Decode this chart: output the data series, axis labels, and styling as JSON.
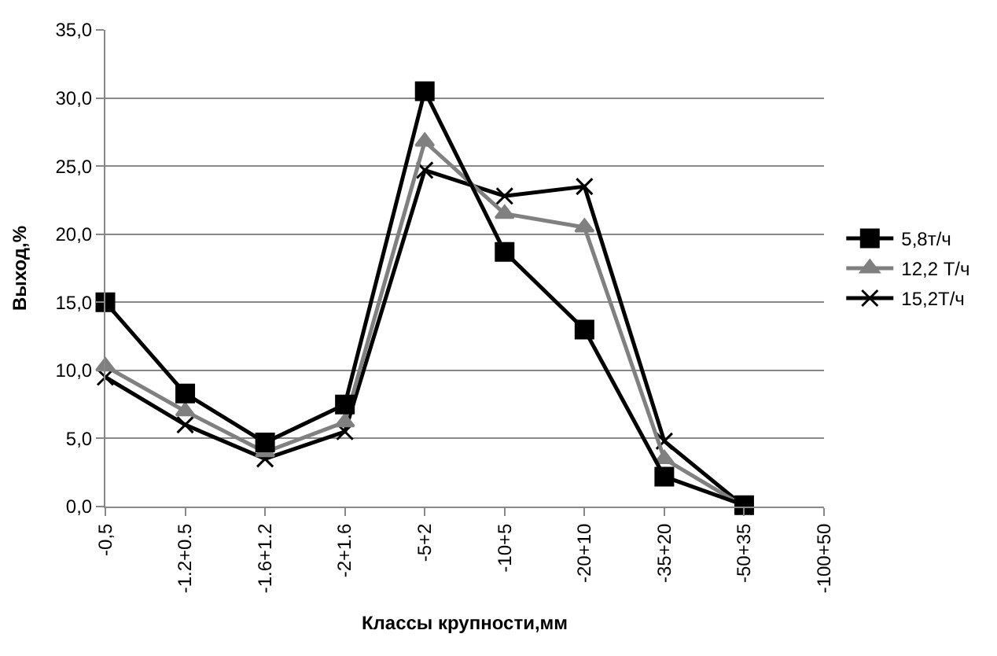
{
  "chart_data": {
    "type": "line",
    "xlabel": "Классы крупности,мм",
    "ylabel": "Выход,%",
    "categories": [
      "-0,5",
      "-1.2+0.5",
      "-1.6+1.2",
      "-2+1.6",
      "-5+2",
      "-10+5",
      "-20+10",
      "-35+20",
      "-50+35",
      "-100+50"
    ],
    "series": [
      {
        "name": "5,8т/ч",
        "color": "#000000",
        "marker": "square",
        "values": [
          15.0,
          8.3,
          4.7,
          7.5,
          30.5,
          18.7,
          13.0,
          2.2,
          0.1,
          null
        ]
      },
      {
        "name": "12,2 Т/ч",
        "color": "#808080",
        "marker": "triangle",
        "values": [
          10.3,
          7.0,
          4.0,
          6.2,
          26.8,
          21.5,
          20.5,
          3.5,
          0.0,
          null
        ]
      },
      {
        "name": "15,2Т/ч",
        "color": "#000000",
        "marker": "cross",
        "values": [
          9.5,
          6.0,
          3.5,
          5.5,
          24.7,
          22.8,
          23.5,
          4.8,
          0.0,
          null
        ]
      }
    ],
    "ylim": [
      0,
      35
    ],
    "yticks": [
      {
        "value": 0,
        "label": "0,0"
      },
      {
        "value": 5,
        "label": "5,0"
      },
      {
        "value": 10,
        "label": "10,0"
      },
      {
        "value": 15,
        "label": "15,0"
      },
      {
        "value": 20,
        "label": "20,0"
      },
      {
        "value": 25,
        "label": "25,0"
      },
      {
        "value": 30,
        "label": "30,0"
      },
      {
        "value": 35,
        "label": "35,0"
      }
    ],
    "grid": "y",
    "legend": "right",
    "line_style": "solid"
  }
}
